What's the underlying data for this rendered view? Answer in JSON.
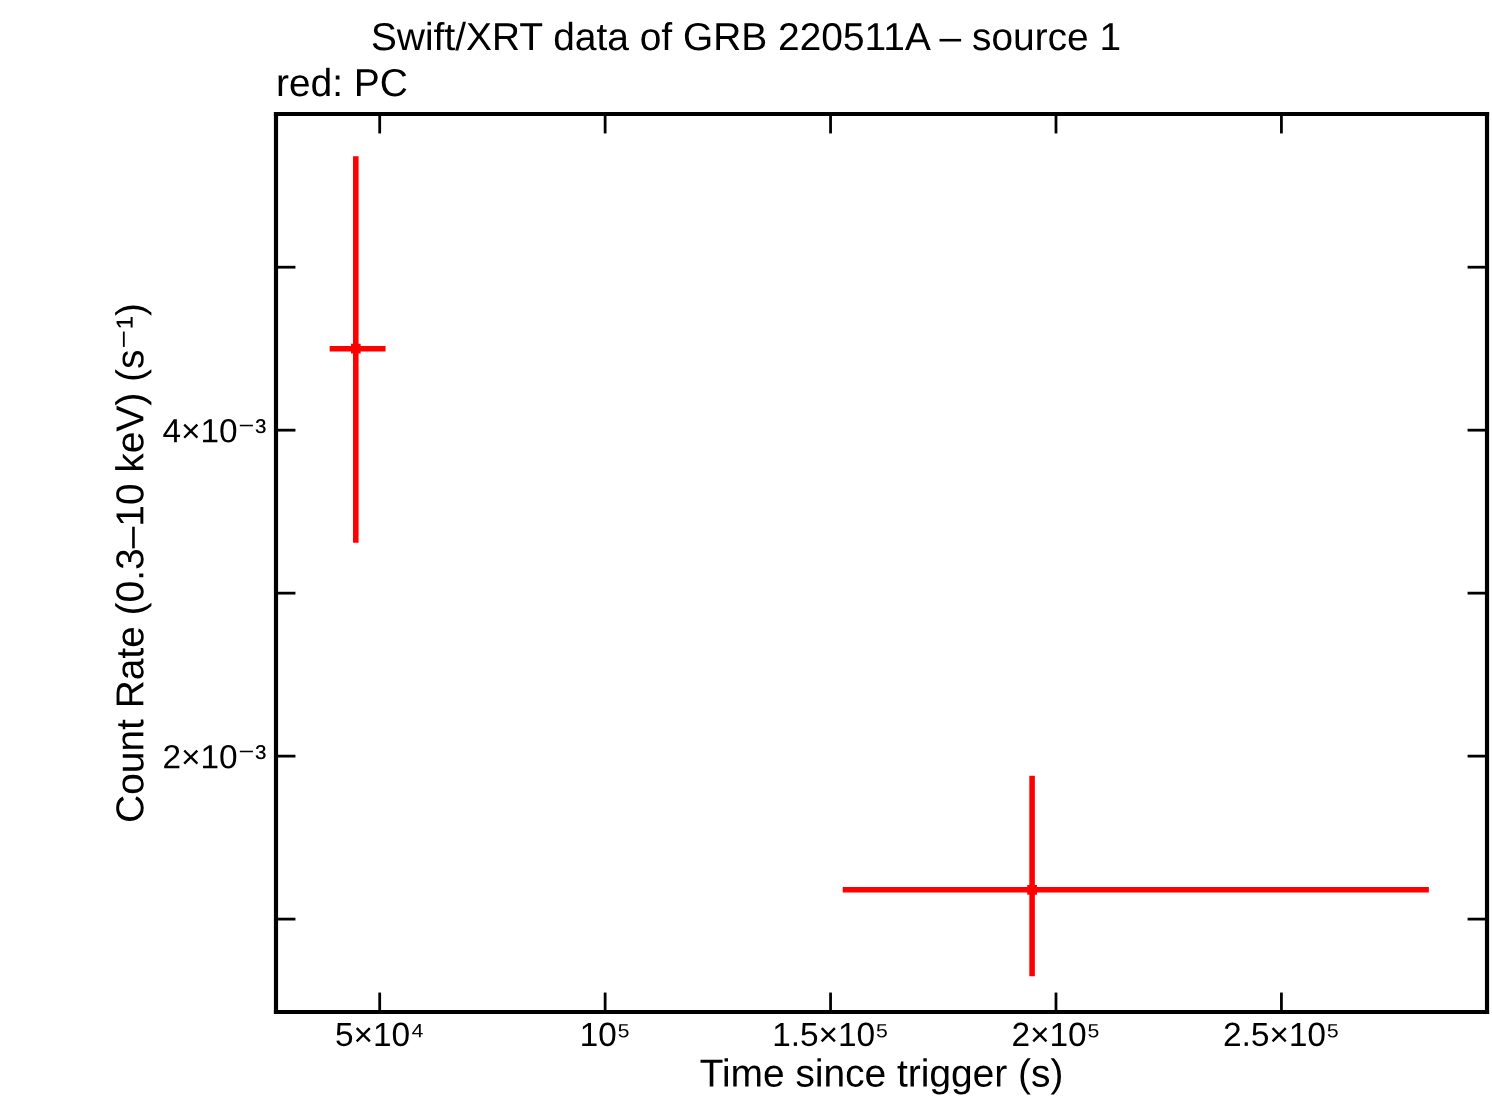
{
  "chart_data": {
    "type": "scatter",
    "title": "Swift/XRT data of GRB 220511A – source 1",
    "xlabel": "Time since trigger (s)",
    "ylabel": "Count Rate (0.3–10 keV) (s⁻¹)",
    "annotations": [
      "red: PC"
    ],
    "grid": false,
    "legend": false,
    "series": [
      {
        "color": "#ff0000",
        "x": [
          44700,
          194700
        ],
        "values": [
          0.0045,
          0.00118
        ],
        "errors": [
          [
            0.00331,
            0.00568
          ],
          [
            0.00065,
            0.00188
          ]
        ],
        "xerrors": [
          [
            38900,
            51300
          ],
          [
            152700,
            282700
          ]
        ]
      }
    ],
    "xlim": [
      27000,
      295600
    ],
    "ylim": [
      0.00043,
      0.00594
    ],
    "xticks": [
      {
        "value": 50000,
        "label": "5×10⁴"
      },
      {
        "value": 100000,
        "label": "10⁵"
      },
      {
        "value": 150000,
        "label": "1.5×10⁵"
      },
      {
        "value": 200000,
        "label": "2×10⁵"
      },
      {
        "value": 250000,
        "label": "2.5×10⁵"
      }
    ],
    "yticks": [
      {
        "value": 0.001,
        "label": null
      },
      {
        "value": 0.002,
        "label": "2×10⁻³"
      },
      {
        "value": 0.003,
        "label": null
      },
      {
        "value": 0.004,
        "label": "4×10⁻³"
      },
      {
        "value": 0.005,
        "label": null
      }
    ]
  }
}
